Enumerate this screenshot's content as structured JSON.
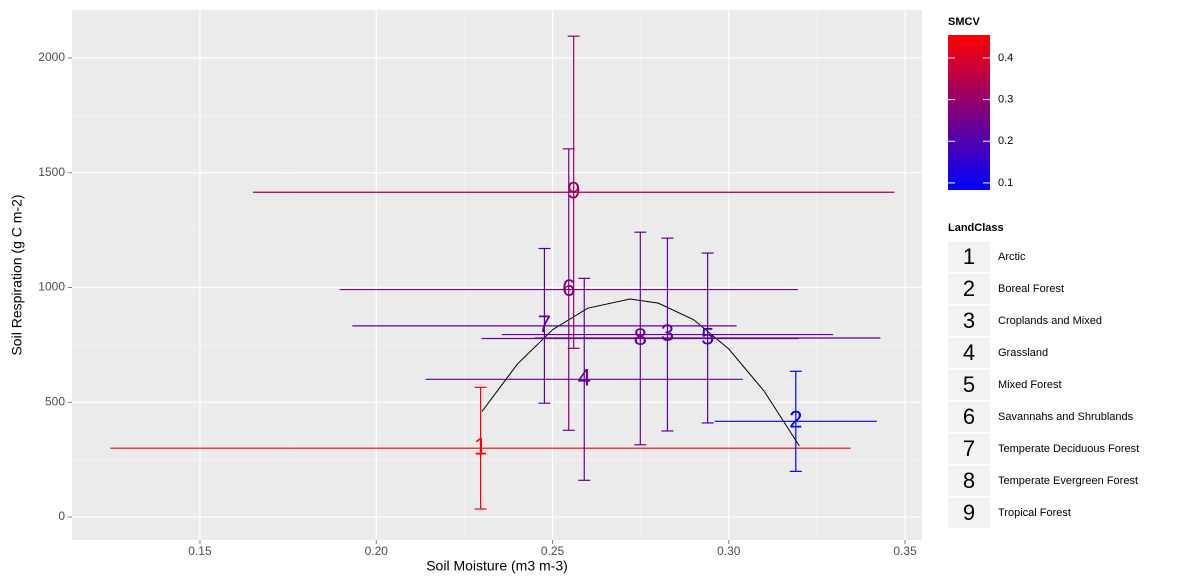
{
  "chart_data": {
    "type": "scatter",
    "x_label": "Soil Moisture (m3 m-3)",
    "y_label": "Soil Respiration (g C m-2)",
    "xlim": [
      0.1137,
      0.3548
    ],
    "xticks": [
      0.15,
      {
        "value": 0.2,
        "label": "0.20"
      },
      0.25,
      {
        "value": 0.3,
        "label": "0.30"
      },
      0.35
    ],
    "ylim": [
      -100,
      2209
    ],
    "yticks": [
      0,
      500,
      1000,
      1500,
      2000
    ],
    "grid": true,
    "points": [
      {
        "label": "1",
        "name": "Arctic",
        "x": 0.2296,
        "y": 300,
        "xerr": 0.105,
        "yerr": 265,
        "smcv": 0.45
      },
      {
        "label": "2",
        "name": "Boreal Forest",
        "x": 0.319,
        "y": 417,
        "xerr": 0.023,
        "yerr": 218,
        "smcv": 0.085
      },
      {
        "label": "3",
        "name": "Croplands and Mixed",
        "x": 0.2826,
        "y": 795,
        "xerr": 0.047,
        "yerr": 420,
        "smcv": 0.22
      },
      {
        "label": "4",
        "name": "Grassland",
        "x": 0.259,
        "y": 600,
        "xerr": 0.045,
        "yerr": 440,
        "smcv": 0.23
      },
      {
        "label": "5",
        "name": "Mixed Forest",
        "x": 0.294,
        "y": 780,
        "xerr": 0.049,
        "yerr": 370,
        "smcv": 0.2
      },
      {
        "label": "6",
        "name": "Savannahs and Shrublands",
        "x": 0.2546,
        "y": 991,
        "xerr": 0.065,
        "yerr": 613,
        "smcv": 0.27
      },
      {
        "label": "7",
        "name": "Temperate Deciduous Forest",
        "x": 0.2477,
        "y": 833,
        "xerr": 0.0545,
        "yerr": 337,
        "smcv": 0.22
      },
      {
        "label": "8",
        "name": "Temperate Evergreen Forest",
        "x": 0.2749,
        "y": 778,
        "xerr": 0.045,
        "yerr": 463,
        "smcv": 0.24
      },
      {
        "label": "9",
        "name": "Tropical Forest",
        "x": 0.256,
        "y": 1415,
        "xerr": 0.091,
        "yerr": 680,
        "smcv": 0.32
      }
    ],
    "curve": {
      "color": "#000000",
      "x": [
        0.23,
        0.24,
        0.25,
        0.26,
        0.272,
        0.28,
        0.29,
        0.3,
        0.31,
        0.32
      ],
      "y": [
        460,
        666,
        816,
        910,
        950,
        932,
        860,
        732,
        549,
        310
      ]
    },
    "color_legend": {
      "title": "SMCV",
      "lim": [
        0.083,
        0.455
      ],
      "ticks": [
        0.1,
        0.2,
        0.3,
        0.4
      ],
      "color_low": "#0000ff",
      "color_high": "#ff0000"
    },
    "shape_legend_title": "LandClass"
  }
}
